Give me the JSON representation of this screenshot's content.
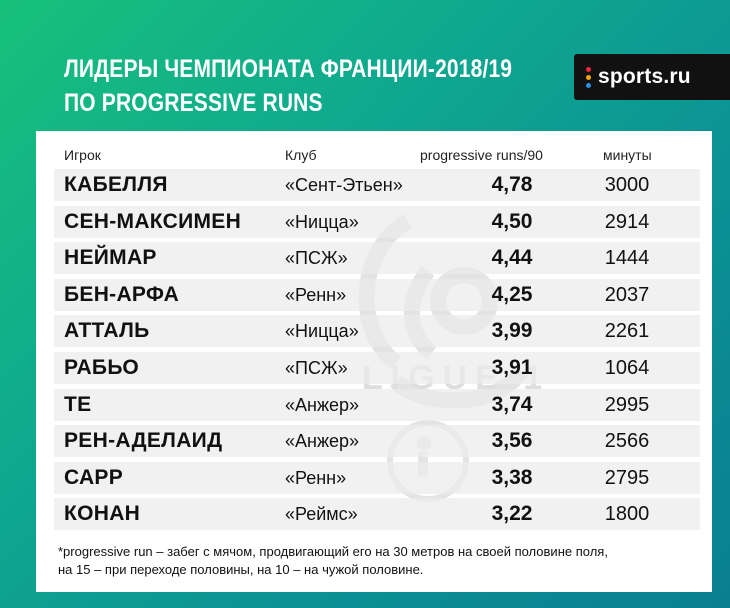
{
  "title_line1": "ЛИДЕРЫ ЧЕМПИОНАТА ФРАНЦИИ-2018/19",
  "title_line2": "ПО PROGRESSIVE RUNS",
  "logo_text": "sports.ru",
  "watermark_text": "LIGUE 1",
  "colors": {
    "background_start": "#17c07a",
    "background_end": "#0a7f8f",
    "logo_dots": [
      "#e9283b",
      "#f7a600",
      "#2a8fe0"
    ]
  },
  "chart_data": {
    "type": "table",
    "columns": [
      "Игрок",
      "Клуб",
      "progressive runs/90",
      "минуты"
    ],
    "rows": [
      {
        "player": "КАБЕЛЛЯ",
        "club": "«Сент-Этьен»",
        "value": "4,78",
        "minutes": "3000"
      },
      {
        "player": "СЕН-МАКСИМЕН",
        "club": "«Ницца»",
        "value": "4,50",
        "minutes": "2914"
      },
      {
        "player": "НЕЙМАР",
        "club": "«ПСЖ»",
        "value": "4,44",
        "minutes": "1444"
      },
      {
        "player": "БЕН-АРФА",
        "club": "«Ренн»",
        "value": "4,25",
        "minutes": "2037"
      },
      {
        "player": "АТТАЛЬ",
        "club": "«Ницца»",
        "value": "3,99",
        "minutes": "2261"
      },
      {
        "player": "РАБЬО",
        "club": "«ПСЖ»",
        "value": "3,91",
        "minutes": "1064"
      },
      {
        "player": "ТЕ",
        "club": "«Анжер»",
        "value": "3,74",
        "minutes": "2995"
      },
      {
        "player": "РЕН-АДЕЛАИД",
        "club": "«Анжер»",
        "value": "3,56",
        "minutes": "2566"
      },
      {
        "player": "САРР",
        "club": "«Ренн»",
        "value": "3,38",
        "minutes": "2795"
      },
      {
        "player": "КОНАН",
        "club": "«Реймс»",
        "value": "3,22",
        "minutes": "1800"
      }
    ],
    "footnote_line1": "*progressive run – забег с мячом, продвигающий его на 30 метров на своей половине поля,",
    "footnote_line2": "на 15 – при переходе половины, на 10 – на чужой половине."
  }
}
